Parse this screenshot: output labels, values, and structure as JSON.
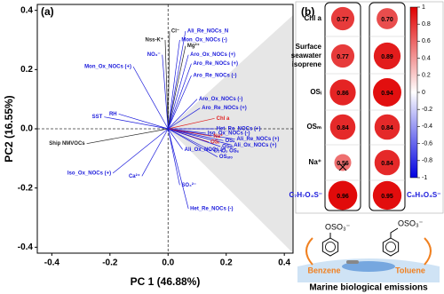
{
  "chart_data": [
    {
      "type": "biplot",
      "panel_label": "(a)",
      "x_label": "PC 1 (46.88%)",
      "y_label": "PC2 (16.55%)",
      "xlim": [
        -0.45,
        0.43
      ],
      "ylim": [
        -0.42,
        0.42
      ],
      "xticks": [
        -0.4,
        -0.2,
        {
          "value": 0,
          "label": "0.0"
        },
        0.2,
        0.4
      ],
      "yticks": [
        -0.4,
        -0.2,
        {
          "value": 0,
          "label": "0.0"
        },
        0.2,
        0.4
      ],
      "labels": [
        "Cl⁻",
        "Ali_Re_NOCs_N",
        "Nss-K⁺",
        "Mon_Ox_NOCs (-)",
        "Mg²⁺",
        "NO₃⁻",
        "Mon_Ox_NOCs (+)",
        "Aro_Ox_NOCs (+)",
        "Aro_Re_NOCs (+)",
        "Aro_Re_NOCs (-)",
        "Aro_Ox_NOCs (-)",
        "Aro_Re_NOCs (+)",
        "Chl a",
        "Het_Re_NOCs (+)",
        "Iso_Ox_NOCs (-)",
        "Ali_Re_NOCs (+)",
        "Ali_Ox_NOCs (+)",
        "OSᵢ",
        "OSₛ",
        "Na⁺",
        "OSₘ",
        "C₂-C₃ OSₛ",
        "OSₐᵣₒ",
        "Ali_Ox_NOCs (-)",
        "RH",
        "SST",
        "Ship NMVOCs",
        "Iso_Ox_NOCs (+)",
        "Ca²⁺",
        "SO₄²⁻",
        "Het_Re_NOCs (-)"
      ],
      "x": [
        0.005,
        0.06,
        -0.01,
        0.04,
        0.06,
        -0.02,
        -0.12,
        0.07,
        0.08,
        0.08,
        0.1,
        0.11,
        0.16,
        0.16,
        0.13,
        0.23,
        0.22,
        0.14,
        0.19,
        0.15,
        0.18,
        0.15,
        0.17,
        0.05,
        -0.17,
        -0.22,
        -0.28,
        -0.19,
        -0.09,
        0.04,
        0.07
      ],
      "y": [
        0.33,
        0.33,
        0.3,
        0.3,
        0.28,
        0.25,
        0.21,
        0.25,
        0.22,
        0.18,
        0.1,
        0.07,
        0.035,
        0.0,
        -0.015,
        -0.035,
        -0.055,
        -0.045,
        -0.04,
        -0.025,
        -0.06,
        -0.075,
        -0.095,
        -0.07,
        0.05,
        0.04,
        -0.05,
        -0.15,
        -0.16,
        -0.19,
        -0.27
      ],
      "colors": [
        "#222222",
        "#1a1adb",
        "#222222",
        "#1a1adb",
        "#222222",
        "#1a1adb",
        "#1a1adb",
        "#1a1adb",
        "#1a1adb",
        "#1a1adb",
        "#1a1adb",
        "#1a1adb",
        "#e02020",
        "#1a1adb",
        "#1a1adb",
        "#1a1adb",
        "#1a1adb",
        "#e02020",
        "#1a1adb",
        "#e02020",
        "#1a1adb",
        "#1a1adb",
        "#1a1adb",
        "#1a1adb",
        "#1a1adb",
        "#1a1adb",
        "#222222",
        "#1a1adb",
        "#1a1adb",
        "#1a1adb",
        "#1a1adb"
      ]
    },
    {
      "type": "correlation",
      "panel_label": "(b)",
      "rows": [
        "Chl a",
        "Surface seawater isoprene",
        "OSᵢ",
        "OSₘ",
        "Na⁺",
        null
      ],
      "columns": [
        "C₇H₇O₄S⁻",
        "C₆H₅O₄S⁻"
      ],
      "values": [
        [
          0.77,
          0.77,
          0.86,
          0.84,
          0.56,
          0.96
        ],
        [
          0.7,
          0.89,
          0.94,
          0.84,
          0.84,
          0.95
        ]
      ],
      "value_labels": [
        [
          "0.77",
          "0.77",
          "0.86",
          "0.84",
          "0.56",
          "0.96"
        ],
        [
          "0.70",
          "0.89",
          "0.94",
          "0.84",
          "0.84",
          "0.95"
        ]
      ],
      "crossed": [
        [
          false,
          false,
          false,
          false,
          true,
          false
        ],
        [
          false,
          false,
          false,
          false,
          false,
          false
        ]
      ],
      "clim": [
        -1,
        1
      ],
      "cticks": [
        1,
        0.8,
        0.6,
        0.4,
        0.2,
        0,
        -0.2,
        -0.4,
        -0.6,
        -0.8,
        -1
      ]
    }
  ],
  "diagram": {
    "groups": [
      "OSO₃⁻",
      "OSO₃⁻"
    ],
    "sources": [
      "Benzene",
      "Toluene"
    ],
    "caption": "Marine biological emissions"
  }
}
